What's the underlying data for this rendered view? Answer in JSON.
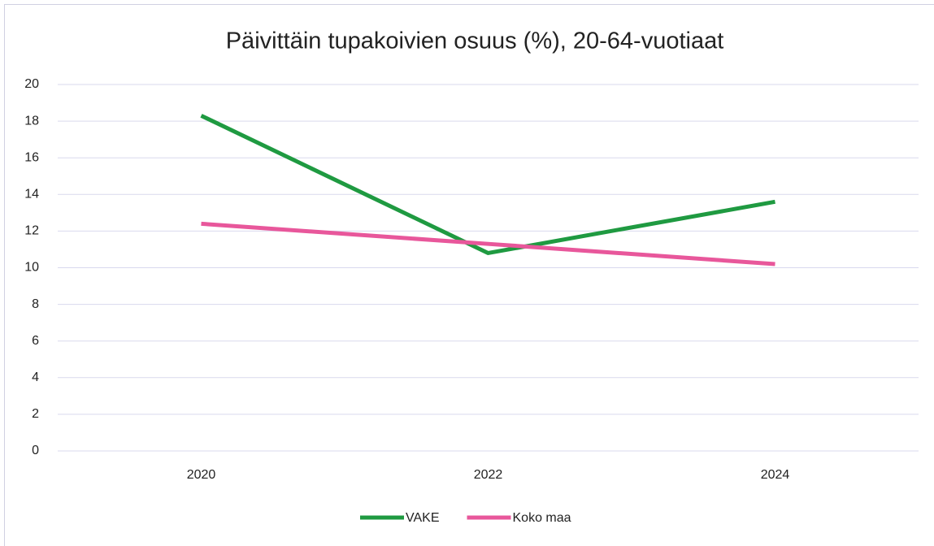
{
  "chart_data": {
    "type": "line",
    "title": "Päivittäin tupakoivien osuus (%), 20-64-vuotiaat",
    "categories": [
      "2020",
      "2022",
      "2024"
    ],
    "series": [
      {
        "name": "VAKE",
        "color": "#1f9a41",
        "values": [
          18.3,
          10.8,
          13.6
        ]
      },
      {
        "name": "Koko maa",
        "color": "#e8579b",
        "values": [
          12.4,
          11.3,
          10.2
        ]
      }
    ],
    "ylim": [
      0,
      20
    ],
    "yticks": [
      0,
      2,
      4,
      6,
      8,
      10,
      12,
      14,
      16,
      18,
      20
    ],
    "grid": true,
    "legend": "bottom"
  }
}
